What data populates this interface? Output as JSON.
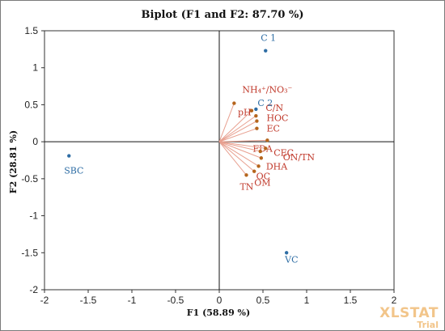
{
  "chart_data": {
    "type": "scatter",
    "title": "Biplot (F1 and F2: 87.70 %)",
    "xlabel": "F1 (58.89 %)",
    "ylabel": "F2 (28.81 %)",
    "xlim": [
      -2,
      2
    ],
    "ylim": [
      -2,
      1.5
    ],
    "xticks": [
      "-2",
      "-1.5",
      "-1",
      "-0.5",
      "0",
      "0.5",
      "1",
      "1.5",
      "2"
    ],
    "yticks": [
      "1.5",
      "1",
      "0.5",
      "0",
      "-0.5",
      "-1",
      "-1.5",
      "-2"
    ],
    "grid": false,
    "variables": [
      {
        "label": "NH₄⁺/NO₃⁻",
        "x": 0.17,
        "y": 0.52
      },
      {
        "label": "pH",
        "x": 0.37,
        "y": 0.42
      },
      {
        "label": "C/N",
        "x": 0.42,
        "y": 0.35
      },
      {
        "label": "HOC",
        "x": 0.43,
        "y": 0.28
      },
      {
        "label": "EC",
        "x": 0.43,
        "y": 0.18
      },
      {
        "label": "FDA",
        "x": 0.55,
        "y": 0.02
      },
      {
        "label": "CEC",
        "x": 0.53,
        "y": -0.09
      },
      {
        "label": "ON/TN",
        "x": 0.47,
        "y": -0.13
      },
      {
        "label": "DHA",
        "x": 0.48,
        "y": -0.22
      },
      {
        "label": "OC",
        "x": 0.45,
        "y": -0.33
      },
      {
        "label": "OM",
        "x": 0.4,
        "y": -0.4
      },
      {
        "label": "TN",
        "x": 0.31,
        "y": -0.45
      }
    ],
    "observations": [
      {
        "label": "C 1",
        "x": 0.53,
        "y": 1.23
      },
      {
        "label": "C 2",
        "x": 0.42,
        "y": 0.44
      },
      {
        "label": "SBC",
        "x": -1.72,
        "y": -0.19
      },
      {
        "label": "VC",
        "x": 0.77,
        "y": -1.5
      }
    ],
    "colors": {
      "variables": "#c0392b",
      "observations": "#2e6da4",
      "vector_lines": "#e8a090"
    }
  },
  "watermark": {
    "brand": "XLSTAT",
    "edition": "Trial"
  }
}
